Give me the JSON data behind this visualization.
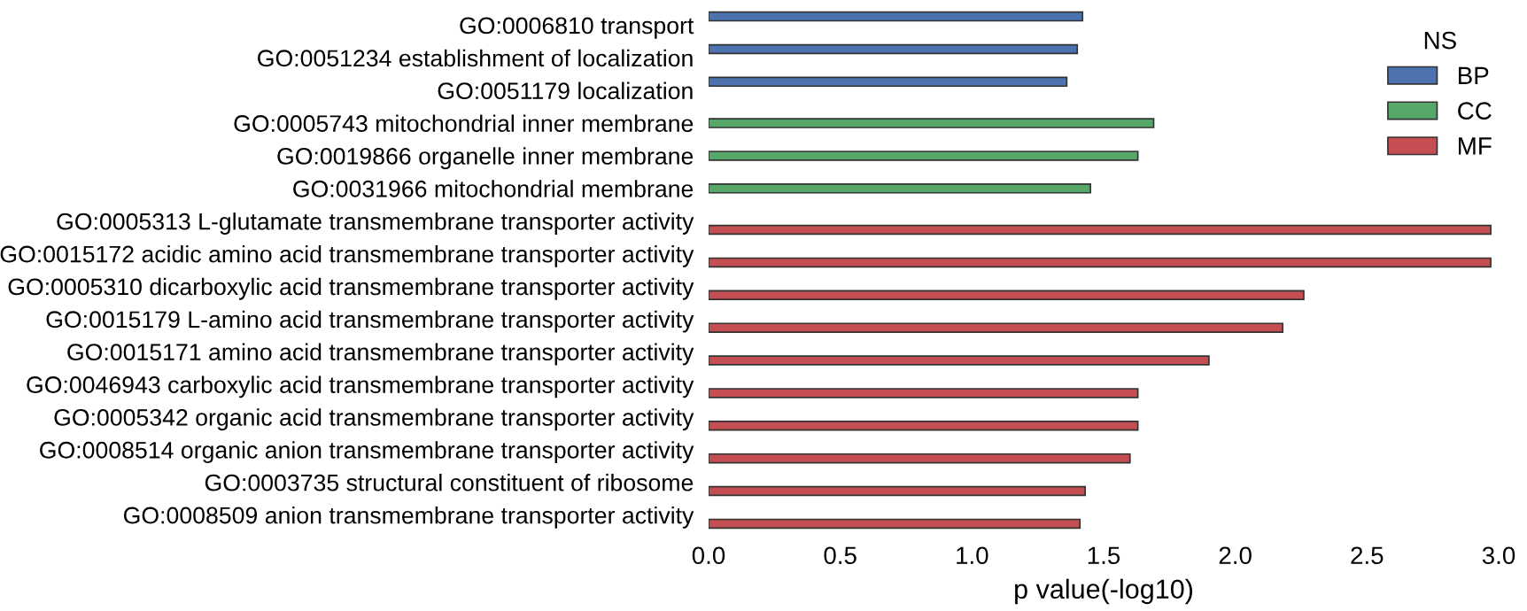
{
  "chart_data": {
    "type": "bar",
    "orientation": "horizontal",
    "xlabel": "p value(-log10)",
    "legend_title": "NS",
    "legend": "top right",
    "grid": false,
    "categories": [
      "GO:0006810 transport",
      "GO:0051234 establishment of localization",
      "GO:0051179 localization",
      "GO:0005743 mitochondrial inner membrane",
      "GO:0019866 organelle inner membrane",
      "GO:0031966 mitochondrial membrane",
      "GO:0005313 L-glutamate transmembrane transporter activity",
      "GO:0015172 acidic amino acid transmembrane transporter activity",
      "GO:0005310 dicarboxylic acid transmembrane transporter activity",
      "GO:0015179 L-amino acid transmembrane transporter activity",
      "GO:0015171 amino acid transmembrane transporter activity",
      "GO:0046943 carboxylic acid transmembrane transporter activity",
      "GO:0005342 organic acid transmembrane transporter activity",
      "GO:0008514 organic anion transmembrane transporter activity",
      "GO:0003735 structural constituent of ribosome",
      "GO:0008509 anion transmembrane transporter activity"
    ],
    "series": [
      {
        "name": "BP",
        "color": "#4c72b0",
        "values": [
          1.42,
          1.4,
          1.36,
          null,
          null,
          null,
          null,
          null,
          null,
          null,
          null,
          null,
          null,
          null,
          null,
          null
        ]
      },
      {
        "name": "CC",
        "color": "#55a868",
        "values": [
          null,
          null,
          null,
          1.69,
          1.63,
          1.45,
          null,
          null,
          null,
          null,
          null,
          null,
          null,
          null,
          null,
          null
        ]
      },
      {
        "name": "MF",
        "color": "#c44e52",
        "values": [
          null,
          null,
          null,
          null,
          null,
          null,
          2.97,
          2.97,
          2.26,
          2.18,
          1.9,
          1.63,
          1.63,
          1.6,
          1.43,
          1.41
        ]
      }
    ],
    "xlim": [
      0,
      3.0
    ],
    "xticks": [
      {
        "value": 0,
        "label": "0.0"
      },
      {
        "value": 0.5,
        "label": "0.5"
      },
      {
        "value": 1.0,
        "label": "1.0"
      },
      {
        "value": 1.5,
        "label": "1.5"
      },
      {
        "value": 2.0,
        "label": "2.0"
      },
      {
        "value": 2.5,
        "label": "2.5"
      },
      {
        "value": 3.0,
        "label": "3.0"
      }
    ]
  }
}
